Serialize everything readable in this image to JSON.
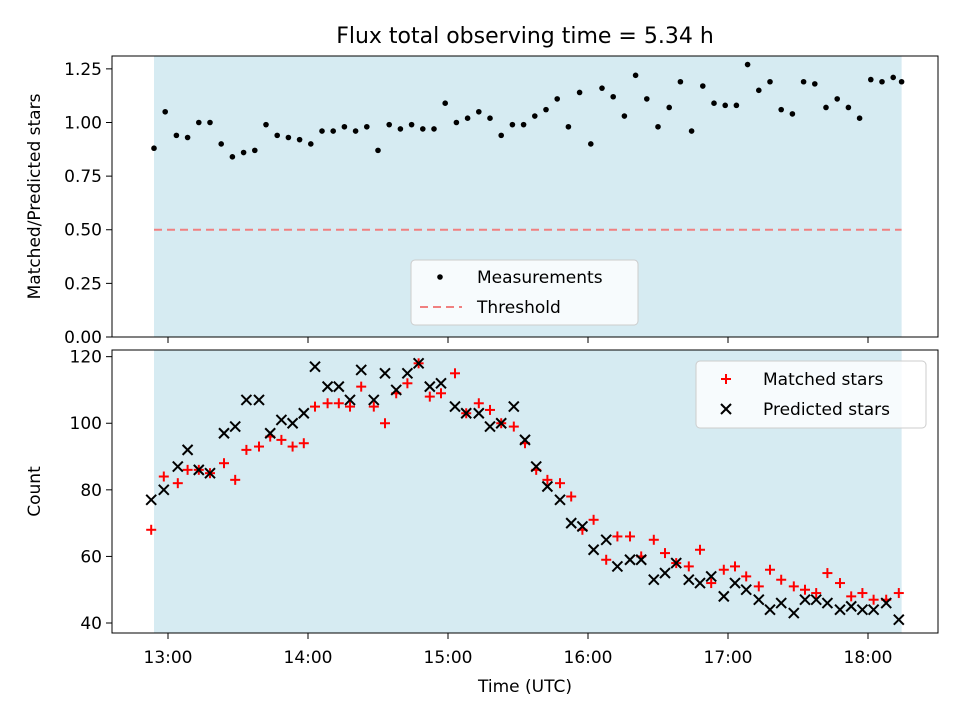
{
  "title": "Flux total observing time = 5.34 h",
  "colors": {
    "background": "#ffffff",
    "shade": "#add8e6",
    "measurement": "#000000",
    "threshold": "#f08080",
    "matched": "#ff0000",
    "predicted": "#000000"
  },
  "chart_data": [
    {
      "type": "scatter",
      "ylabel": "Matched/Predicted stars",
      "xlim": [
        12.6,
        18.5
      ],
      "ylim": [
        0,
        1.31
      ],
      "yticks": [
        0,
        0.25,
        0.5,
        0.75,
        1.0,
        1.25
      ],
      "ytick_labels": [
        "0.00",
        "0.25",
        "0.50",
        "0.75",
        "1.00",
        "1.25"
      ],
      "xticks": [
        13,
        14,
        15,
        16,
        17,
        18
      ],
      "shade_span": [
        12.9,
        18.24
      ],
      "threshold": 0.5,
      "legend": {
        "location": "lower-center",
        "entries": [
          "Measurements",
          "Threshold"
        ]
      },
      "x": [
        12.9,
        12.98,
        13.06,
        13.14,
        13.22,
        13.3,
        13.38,
        13.46,
        13.54,
        13.62,
        13.7,
        13.78,
        13.86,
        13.94,
        14.02,
        14.1,
        14.18,
        14.26,
        14.34,
        14.42,
        14.5,
        14.58,
        14.66,
        14.74,
        14.82,
        14.9,
        14.98,
        15.06,
        15.14,
        15.22,
        15.3,
        15.38,
        15.46,
        15.54,
        15.62,
        15.7,
        15.78,
        15.86,
        15.94,
        16.02,
        16.1,
        16.18,
        16.26,
        16.34,
        16.42,
        16.5,
        16.58,
        16.66,
        16.74,
        16.82,
        16.9,
        16.98,
        17.06,
        17.14,
        17.22,
        17.3,
        17.38,
        17.46,
        17.54,
        17.62,
        17.7,
        17.78,
        17.86,
        17.94,
        18.02,
        18.1,
        18.18,
        18.24
      ],
      "y": [
        0.88,
        1.05,
        0.94,
        0.93,
        1.0,
        1.0,
        0.9,
        0.84,
        0.86,
        0.87,
        0.99,
        0.94,
        0.93,
        0.92,
        0.9,
        0.96,
        0.96,
        0.98,
        0.96,
        0.98,
        0.87,
        0.99,
        0.97,
        0.99,
        0.97,
        0.97,
        1.09,
        1.0,
        1.02,
        1.05,
        1.02,
        0.94,
        0.99,
        0.99,
        1.03,
        1.06,
        1.11,
        0.98,
        1.14,
        0.9,
        1.16,
        1.12,
        1.03,
        1.22,
        1.11,
        0.98,
        1.07,
        1.19,
        0.96,
        1.17,
        1.09,
        1.08,
        1.08,
        1.27,
        1.15,
        1.19,
        1.06,
        1.04,
        1.19,
        1.18,
        1.07,
        1.11,
        1.07,
        1.02,
        1.2,
        1.19,
        1.21,
        1.19
      ]
    },
    {
      "type": "scatter",
      "xlabel": "Time (UTC)",
      "ylabel": "Count",
      "xlim": [
        12.6,
        18.5
      ],
      "ylim": [
        37,
        122
      ],
      "yticks": [
        40,
        60,
        80,
        100,
        120
      ],
      "xticks": [
        13,
        14,
        15,
        16,
        17,
        18
      ],
      "xtick_labels": [
        "13:00",
        "14:00",
        "15:00",
        "16:00",
        "17:00",
        "18:00"
      ],
      "shade_span": [
        12.9,
        18.24
      ],
      "legend": {
        "location": "upper-right",
        "entries": [
          "Matched stars",
          "Predicted stars"
        ]
      },
      "series": [
        {
          "name": "Matched stars",
          "marker": "plus",
          "x": [
            12.88,
            12.97,
            13.07,
            13.14,
            13.22,
            13.3,
            13.4,
            13.48,
            13.56,
            13.65,
            13.73,
            13.81,
            13.89,
            13.97,
            14.05,
            14.14,
            14.22,
            14.3,
            14.38,
            14.47,
            14.55,
            14.63,
            14.71,
            14.79,
            14.87,
            14.95,
            15.05,
            15.13,
            15.22,
            15.3,
            15.38,
            15.47,
            15.55,
            15.63,
            15.71,
            15.8,
            15.88,
            15.96,
            16.04,
            16.13,
            16.21,
            16.3,
            16.38,
            16.47,
            16.55,
            16.63,
            16.72,
            16.8,
            16.88,
            16.97,
            17.05,
            17.13,
            17.22,
            17.3,
            17.38,
            17.47,
            17.55,
            17.63,
            17.71,
            17.8,
            17.88,
            17.96,
            18.04,
            18.13,
            18.22
          ],
          "y": [
            68,
            84,
            82,
            86,
            86,
            85,
            88,
            83,
            92,
            93,
            96,
            95,
            93,
            94,
            105,
            106,
            106,
            105,
            111,
            105,
            100,
            109,
            112,
            118,
            108,
            109,
            115,
            103,
            106,
            104,
            100,
            99,
            94,
            86,
            83,
            82,
            78,
            68,
            71,
            59,
            66,
            66,
            60,
            65,
            61,
            58,
            57,
            62,
            52,
            56,
            57,
            54,
            51,
            56,
            53,
            51,
            50,
            49,
            55,
            52,
            48,
            49,
            47,
            47,
            49
          ]
        },
        {
          "name": "Predicted stars",
          "marker": "x",
          "x": [
            12.88,
            12.97,
            13.07,
            13.14,
            13.22,
            13.3,
            13.4,
            13.48,
            13.56,
            13.65,
            13.73,
            13.81,
            13.89,
            13.97,
            14.05,
            14.14,
            14.22,
            14.3,
            14.38,
            14.47,
            14.55,
            14.63,
            14.71,
            14.79,
            14.87,
            14.95,
            15.05,
            15.13,
            15.22,
            15.3,
            15.38,
            15.47,
            15.55,
            15.63,
            15.71,
            15.8,
            15.88,
            15.96,
            16.04,
            16.13,
            16.21,
            16.3,
            16.38,
            16.47,
            16.55,
            16.63,
            16.72,
            16.8,
            16.88,
            16.97,
            17.05,
            17.13,
            17.22,
            17.3,
            17.38,
            17.47,
            17.55,
            17.63,
            17.71,
            17.8,
            17.88,
            17.96,
            18.04,
            18.13,
            18.22
          ],
          "y": [
            77,
            80,
            87,
            92,
            86,
            85,
            97,
            99,
            107,
            107,
            97,
            101,
            100,
            103,
            117,
            111,
            111,
            107,
            116,
            107,
            115,
            110,
            115,
            118,
            111,
            112,
            105,
            103,
            103,
            99,
            100,
            105,
            95,
            87,
            81,
            77,
            70,
            69,
            62,
            65,
            57,
            59,
            59,
            53,
            55,
            58,
            53,
            52,
            54,
            48,
            52,
            50,
            47,
            44,
            46,
            43,
            47,
            47,
            46,
            44,
            45,
            44,
            44,
            46,
            41
          ]
        }
      ]
    }
  ]
}
